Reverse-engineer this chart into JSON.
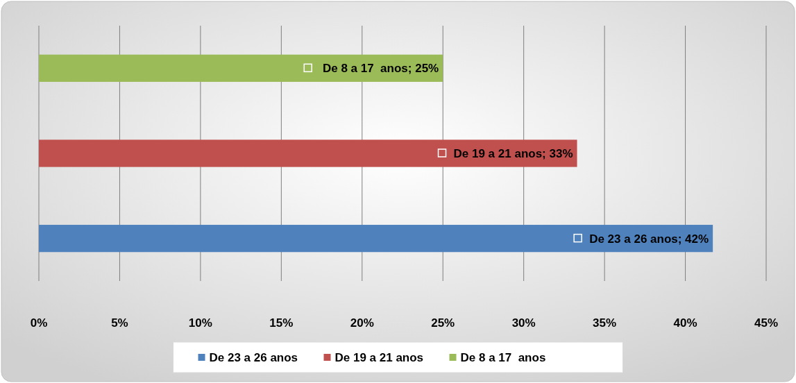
{
  "chart_data": {
    "type": "bar",
    "orientation": "horizontal",
    "categories": [
      null,
      null,
      null
    ],
    "series": [
      {
        "name": "De 23 a 26 anos",
        "color": "#4f81bd",
        "values": [
          null,
          null,
          41.7
        ],
        "value_labels": [
          null,
          null,
          "De 23 a 26 anos; 42%"
        ]
      },
      {
        "name": "De 19 a 21 anos",
        "color": "#c0504d",
        "values": [
          null,
          33.3,
          null
        ],
        "value_labels": [
          null,
          "De 19 a 21 anos; 33%",
          null
        ]
      },
      {
        "name": "De 8 a 17  anos",
        "color": "#9bbb59",
        "values": [
          25,
          null,
          null
        ],
        "value_labels": [
          "De 8 a 17  anos; 25%",
          null,
          null
        ]
      }
    ],
    "xlim": [
      0,
      45
    ],
    "xticks": [
      {
        "value": 0,
        "label": "0%"
      },
      {
        "value": 5,
        "label": "5%"
      },
      {
        "value": 10,
        "label": "10%"
      },
      {
        "value": 15,
        "label": "15%"
      },
      {
        "value": 20,
        "label": "20%"
      },
      {
        "value": 25,
        "label": "25%"
      },
      {
        "value": 30,
        "label": "30%"
      },
      {
        "value": 35,
        "label": "35%"
      },
      {
        "value": 40,
        "label": "40%"
      },
      {
        "value": 45,
        "label": "45%"
      }
    ],
    "grid": "x",
    "legend": "bottom"
  }
}
